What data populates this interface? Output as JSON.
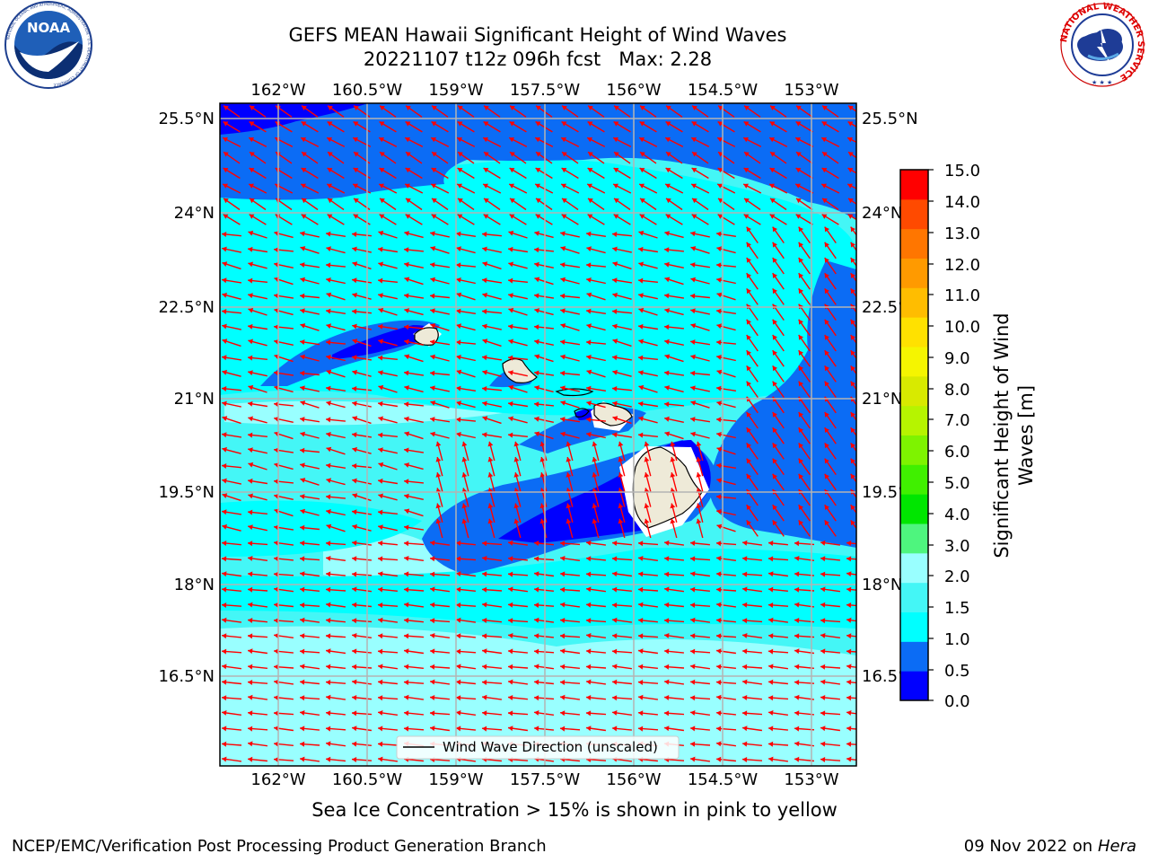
{
  "header": {
    "title_line1": "GEFS MEAN Hawaii Significant Height of Wind Waves",
    "title_line2": "20221107 t12z 096h fcst   Max: 2.28"
  },
  "logos": {
    "left": {
      "icon": "noaa-logo",
      "text": "NOAA",
      "ring_text": "NATIONAL OCEANIC AND ATMOSPHERIC ADMINISTRATION · U.S. DEPARTMENT OF COMMERCE"
    },
    "right": {
      "icon": "nws-logo",
      "ring_text": "NATIONAL WEATHER SERVICE"
    }
  },
  "map": {
    "lon_labels": [
      "162°W",
      "160.5°W",
      "159°W",
      "157.5°W",
      "156°W",
      "154.5°W",
      "153°W"
    ],
    "lat_labels": [
      "25.5°N",
      "24°N",
      "22.5°N",
      "21°N",
      "19.5°N",
      "18°N",
      "16.5°N"
    ],
    "legend_label": "Wind Wave Direction (unscaled)",
    "colors": {
      "band_0_0p5": "#0000ff",
      "band_0p5_1": "#0b6cf5",
      "band_1_1p5": "#00ffff",
      "band_1p5_2": "#44f6f6",
      "band_2_3": "#99ffff",
      "land": "#eeead8",
      "arrow": "#ff0000",
      "grid": "#b4b4b4"
    }
  },
  "colorbar": {
    "title_line1": "Significant Height of Wind",
    "title_line2": "Waves [m]",
    "ticks": [
      "15.0",
      "14.0",
      "13.0",
      "12.0",
      "11.0",
      "10.0",
      "9.0",
      "8.0",
      "7.0",
      "6.0",
      "5.0",
      "4.0",
      "3.0",
      "2.0",
      "1.5",
      "1.0",
      "0.5",
      "0.0"
    ],
    "colors_bottom_to_top": [
      "#0000ff",
      "#0b6cf5",
      "#00ffff",
      "#44f6f6",
      "#99ffff",
      "#4ef57e",
      "#00e600",
      "#40f000",
      "#7ef300",
      "#b6f400",
      "#d8ea00",
      "#f5f500",
      "#ffe100",
      "#ffbd00",
      "#ff9a00",
      "#ff7600",
      "#ff4a00",
      "#ff0000"
    ]
  },
  "footer": {
    "caption": "Sea Ice Concentration > 15% is shown in pink to yellow",
    "credit": "NCEP/EMC/Verification Post Processing Product Generation Branch",
    "date": "09 Nov 2022 on",
    "host": "Hera"
  }
}
